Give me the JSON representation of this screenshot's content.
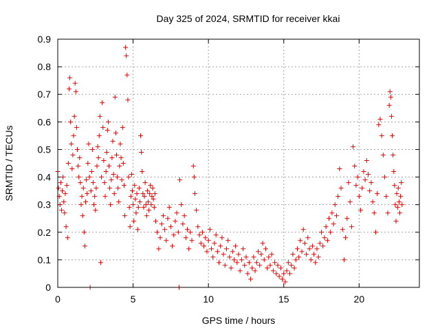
{
  "chart_data": {
    "type": "scatter",
    "title": "Day 325 of 2024, SRMTID for receiver kkai",
    "xlabel": "GPS time / hours",
    "ylabel": "SRMTID / TECUs",
    "xlim": [
      0,
      24
    ],
    "ylim": [
      0,
      0.9
    ],
    "xticks": [
      0,
      5,
      10,
      15,
      20
    ],
    "xtick_labels": [
      "0",
      "5",
      "10",
      "15",
      "20"
    ],
    "yticks": [
      0,
      0.1,
      0.2,
      0.3,
      0.4,
      0.5,
      0.6,
      0.7,
      0.8,
      0.9
    ],
    "ytick_labels": [
      "0",
      "0.1",
      "0.2",
      "0.3",
      "0.4",
      "0.5",
      "0.6",
      "0.7",
      "0.8",
      "0.9"
    ],
    "grid": true,
    "marker": "+",
    "color": "#e00000",
    "series": [
      {
        "name": "SRMTID",
        "points": [
          [
            0.0,
            0.42
          ],
          [
            0.05,
            0.36
          ],
          [
            0.1,
            0.33
          ],
          [
            0.15,
            0.3
          ],
          [
            0.2,
            0.38
          ],
          [
            0.25,
            0.28
          ],
          [
            0.3,
            0.35
          ],
          [
            0.35,
            0.4
          ],
          [
            0.4,
            0.31
          ],
          [
            0.45,
            0.27
          ],
          [
            0.5,
            0.34
          ],
          [
            0.55,
            0.22
          ],
          [
            0.6,
            0.37
          ],
          [
            0.65,
            0.18
          ],
          [
            0.7,
            0.45
          ],
          [
            0.75,
            0.72
          ],
          [
            0.8,
            0.76
          ],
          [
            0.85,
            0.6
          ],
          [
            0.9,
            0.52
          ],
          [
            0.95,
            0.43
          ],
          [
            1.0,
            0.48
          ],
          [
            1.05,
            0.55
          ],
          [
            1.1,
            0.62
          ],
          [
            1.15,
            0.74
          ],
          [
            1.2,
            0.71
          ],
          [
            1.25,
            0.58
          ],
          [
            1.3,
            0.5
          ],
          [
            1.35,
            0.44
          ],
          [
            1.4,
            0.4
          ],
          [
            1.45,
            0.47
          ],
          [
            1.5,
            0.38
          ],
          [
            1.55,
            0.3
          ],
          [
            1.6,
            0.33
          ],
          [
            1.65,
            0.26
          ],
          [
            1.7,
            0.36
          ],
          [
            1.75,
            0.2
          ],
          [
            1.8,
            0.15
          ],
          [
            1.85,
            0.31
          ],
          [
            1.9,
            0.39
          ],
          [
            1.95,
            0.34
          ],
          [
            2.0,
            0.45
          ],
          [
            2.05,
            0.52
          ],
          [
            2.1,
            0.4
          ],
          [
            2.15,
            0.0
          ],
          [
            2.2,
            0.35
          ],
          [
            2.25,
            0.42
          ],
          [
            2.3,
            0.5
          ],
          [
            2.35,
            0.38
          ],
          [
            2.4,
            0.3
          ],
          [
            2.45,
            0.33
          ],
          [
            2.5,
            0.28
          ],
          [
            2.55,
            0.36
          ],
          [
            2.6,
            0.44
          ],
          [
            2.65,
            0.51
          ],
          [
            2.7,
            0.47
          ],
          [
            2.75,
            0.55
          ],
          [
            2.8,
            0.62
          ],
          [
            2.85,
            0.09
          ],
          [
            2.9,
            0.4
          ],
          [
            2.95,
            0.67
          ],
          [
            3.0,
            0.58
          ],
          [
            3.05,
            0.46
          ],
          [
            3.1,
            0.38
          ],
          [
            3.15,
            0.33
          ],
          [
            3.2,
            0.42
          ],
          [
            3.25,
            0.49
          ],
          [
            3.3,
            0.57
          ],
          [
            3.35,
            0.6
          ],
          [
            3.4,
            0.44
          ],
          [
            3.45,
            0.36
          ],
          [
            3.5,
            0.3
          ],
          [
            3.55,
            0.39
          ],
          [
            3.6,
            0.47
          ],
          [
            3.65,
            0.53
          ],
          [
            3.7,
            0.41
          ],
          [
            3.75,
            0.34
          ],
          [
            3.8,
            0.69
          ],
          [
            3.85,
            0.56
          ],
          [
            3.9,
            0.48
          ],
          [
            3.95,
            0.4
          ],
          [
            4.0,
            0.36
          ],
          [
            4.05,
            0.31
          ],
          [
            4.1,
            0.44
          ],
          [
            4.15,
            0.52
          ],
          [
            4.2,
            0.47
          ],
          [
            4.25,
            0.39
          ],
          [
            4.3,
            0.58
          ],
          [
            4.35,
            0.45
          ],
          [
            4.4,
            0.37
          ],
          [
            4.45,
            0.26
          ],
          [
            4.5,
            0.87
          ],
          [
            4.55,
            0.84
          ],
          [
            4.6,
            0.77
          ],
          [
            4.65,
            0.68
          ],
          [
            4.7,
            0.4
          ],
          [
            4.75,
            0.29
          ],
          [
            4.8,
            0.22
          ],
          [
            4.85,
            0.33
          ],
          [
            4.9,
            0.41
          ],
          [
            4.95,
            0.35
          ],
          [
            5.0,
            0.3
          ],
          [
            5.05,
            0.24
          ],
          [
            5.1,
            0.37
          ],
          [
            5.15,
            0.32
          ],
          [
            5.2,
            0.27
          ],
          [
            5.25,
            0.34
          ],
          [
            5.3,
            0.21
          ],
          [
            5.35,
            0.29
          ],
          [
            5.4,
            0.36
          ],
          [
            5.45,
            0.31
          ],
          [
            5.5,
            0.55
          ],
          [
            5.55,
            0.49
          ],
          [
            5.6,
            0.42
          ],
          [
            5.65,
            0.34
          ],
          [
            5.7,
            0.29
          ],
          [
            5.75,
            0.33
          ],
          [
            5.8,
            0.38
          ],
          [
            5.85,
            0.3
          ],
          [
            5.9,
            0.26
          ],
          [
            5.95,
            0.35
          ],
          [
            6.0,
            0.31
          ],
          [
            6.05,
            0.28
          ],
          [
            6.1,
            0.34
          ],
          [
            6.15,
            0.37
          ],
          [
            6.2,
            0.3
          ],
          [
            6.25,
            0.33
          ],
          [
            6.3,
            0.36
          ],
          [
            6.35,
            0.32
          ],
          [
            6.4,
            0.29
          ],
          [
            6.45,
            0.34
          ],
          [
            6.5,
            0.24
          ],
          [
            6.6,
            0.2
          ],
          [
            6.7,
            0.14
          ],
          [
            6.8,
            0.18
          ],
          [
            6.9,
            0.23
          ],
          [
            7.0,
            0.26
          ],
          [
            7.1,
            0.21
          ],
          [
            7.2,
            0.17
          ],
          [
            7.3,
            0.25
          ],
          [
            7.4,
            0.29
          ],
          [
            7.5,
            0.22
          ],
          [
            7.6,
            0.15
          ],
          [
            7.7,
            0.19
          ],
          [
            7.8,
            0.24
          ],
          [
            7.9,
            0.27
          ],
          [
            8.0,
            0.2
          ],
          [
            8.05,
            0.0
          ],
          [
            8.1,
            0.39
          ],
          [
            8.2,
            0.3
          ],
          [
            8.3,
            0.23
          ],
          [
            8.4,
            0.26
          ],
          [
            8.5,
            0.18
          ],
          [
            8.6,
            0.21
          ],
          [
            8.7,
            0.14
          ],
          [
            8.8,
            0.2
          ],
          [
            8.9,
            0.17
          ],
          [
            9.0,
            0.44
          ],
          [
            9.05,
            0.4
          ],
          [
            9.1,
            0.34
          ],
          [
            9.2,
            0.28
          ],
          [
            9.3,
            0.22
          ],
          [
            9.4,
            0.19
          ],
          [
            9.5,
            0.16
          ],
          [
            9.6,
            0.2
          ],
          [
            9.7,
            0.15
          ],
          [
            9.8,
            0.18
          ],
          [
            9.9,
            0.13
          ],
          [
            10.0,
            0.17
          ],
          [
            10.1,
            0.21
          ],
          [
            10.2,
            0.14
          ],
          [
            10.3,
            0.11
          ],
          [
            10.4,
            0.16
          ],
          [
            10.5,
            0.19
          ],
          [
            10.6,
            0.13
          ],
          [
            10.7,
            0.09
          ],
          [
            10.8,
            0.15
          ],
          [
            10.9,
            0.18
          ],
          [
            11.0,
            0.12
          ],
          [
            11.1,
            0.08
          ],
          [
            11.2,
            0.14
          ],
          [
            11.3,
            0.17
          ],
          [
            11.4,
            0.11
          ],
          [
            11.5,
            0.07
          ],
          [
            11.6,
            0.13
          ],
          [
            11.7,
            0.1
          ],
          [
            11.8,
            0.15
          ],
          [
            11.9,
            0.09
          ],
          [
            12.0,
            0.12
          ],
          [
            12.1,
            0.06
          ],
          [
            12.2,
            0.1
          ],
          [
            12.3,
            0.14
          ],
          [
            12.4,
            0.08
          ],
          [
            12.5,
            0.11
          ],
          [
            12.6,
            0.05
          ],
          [
            12.7,
            0.09
          ],
          [
            12.8,
            0.03
          ],
          [
            12.9,
            0.07
          ],
          [
            13.0,
            0.11
          ],
          [
            13.1,
            0.06
          ],
          [
            13.2,
            0.09
          ],
          [
            13.3,
            0.13
          ],
          [
            13.4,
            0.08
          ],
          [
            13.5,
            0.12
          ],
          [
            13.6,
            0.16
          ],
          [
            13.7,
            0.1
          ],
          [
            13.8,
            0.14
          ],
          [
            13.9,
            0.07
          ],
          [
            14.0,
            0.11
          ],
          [
            14.1,
            0.08
          ],
          [
            14.2,
            0.12
          ],
          [
            14.3,
            0.06
          ],
          [
            14.4,
            0.09
          ],
          [
            14.5,
            0.05
          ],
          [
            14.6,
            0.08
          ],
          [
            14.7,
            0.04
          ],
          [
            14.8,
            0.07
          ],
          [
            14.9,
            0.03
          ],
          [
            15.0,
            0.05
          ],
          [
            15.1,
            0.02
          ],
          [
            15.2,
            0.06
          ],
          [
            15.3,
            0.09
          ],
          [
            15.4,
            0.05
          ],
          [
            15.5,
            0.08
          ],
          [
            15.6,
            0.12
          ],
          [
            15.7,
            0.07
          ],
          [
            15.8,
            0.1
          ],
          [
            15.9,
            0.14
          ],
          [
            16.0,
            0.11
          ],
          [
            16.1,
            0.17
          ],
          [
            16.2,
            0.13
          ],
          [
            16.3,
            0.21
          ],
          [
            16.4,
            0.16
          ],
          [
            16.5,
            0.12
          ],
          [
            16.6,
            0.18
          ],
          [
            16.7,
            0.14
          ],
          [
            16.8,
            0.1
          ],
          [
            16.9,
            0.15
          ],
          [
            17.0,
            0.12
          ],
          [
            17.1,
            0.09
          ],
          [
            17.2,
            0.14
          ],
          [
            17.3,
            0.11
          ],
          [
            17.4,
            0.16
          ],
          [
            17.5,
            0.2
          ],
          [
            17.6,
            0.15
          ],
          [
            17.7,
            0.18
          ],
          [
            17.8,
            0.22
          ],
          [
            17.9,
            0.17
          ],
          [
            18.0,
            0.25
          ],
          [
            18.1,
            0.2
          ],
          [
            18.2,
            0.27
          ],
          [
            18.3,
            0.23
          ],
          [
            18.4,
            0.3
          ],
          [
            18.5,
            0.26
          ],
          [
            18.6,
            0.33
          ],
          [
            18.7,
            0.43
          ],
          [
            18.8,
            0.36
          ],
          [
            18.9,
            0.21
          ],
          [
            19.0,
            0.1
          ],
          [
            19.1,
            0.18
          ],
          [
            19.2,
            0.25
          ],
          [
            19.3,
            0.38
          ],
          [
            19.4,
            0.31
          ],
          [
            19.5,
            0.22
          ],
          [
            19.6,
            0.51
          ],
          [
            19.7,
            0.44
          ],
          [
            19.8,
            0.37
          ],
          [
            19.9,
            0.4
          ],
          [
            20.0,
            0.33
          ],
          [
            20.1,
            0.28
          ],
          [
            20.2,
            0.36
          ],
          [
            20.3,
            0.42
          ],
          [
            20.4,
            0.39
          ],
          [
            20.5,
            0.46
          ],
          [
            20.6,
            0.41
          ],
          [
            20.7,
            0.35
          ],
          [
            20.8,
            0.38
          ],
          [
            20.9,
            0.31
          ],
          [
            21.0,
            0.27
          ],
          [
            21.1,
            0.2
          ],
          [
            21.2,
            0.34
          ],
          [
            21.3,
            0.59
          ],
          [
            21.4,
            0.61
          ],
          [
            21.5,
            0.55
          ],
          [
            21.6,
            0.48
          ],
          [
            21.7,
            0.4
          ],
          [
            21.8,
            0.33
          ],
          [
            21.9,
            0.27
          ],
          [
            22.0,
            0.66
          ],
          [
            22.05,
            0.71
          ],
          [
            22.1,
            0.69
          ],
          [
            22.15,
            0.62
          ],
          [
            22.2,
            0.55
          ],
          [
            22.25,
            0.48
          ],
          [
            22.3,
            0.42
          ],
          [
            22.35,
            0.37
          ],
          [
            22.4,
            0.3
          ],
          [
            22.45,
            0.24
          ],
          [
            22.5,
            0.34
          ],
          [
            22.55,
            0.29
          ],
          [
            22.6,
            0.36
          ],
          [
            22.65,
            0.31
          ],
          [
            22.7,
            0.27
          ],
          [
            22.75,
            0.33
          ],
          [
            22.8,
            0.38
          ],
          [
            22.85,
            0.3
          ]
        ]
      }
    ]
  }
}
